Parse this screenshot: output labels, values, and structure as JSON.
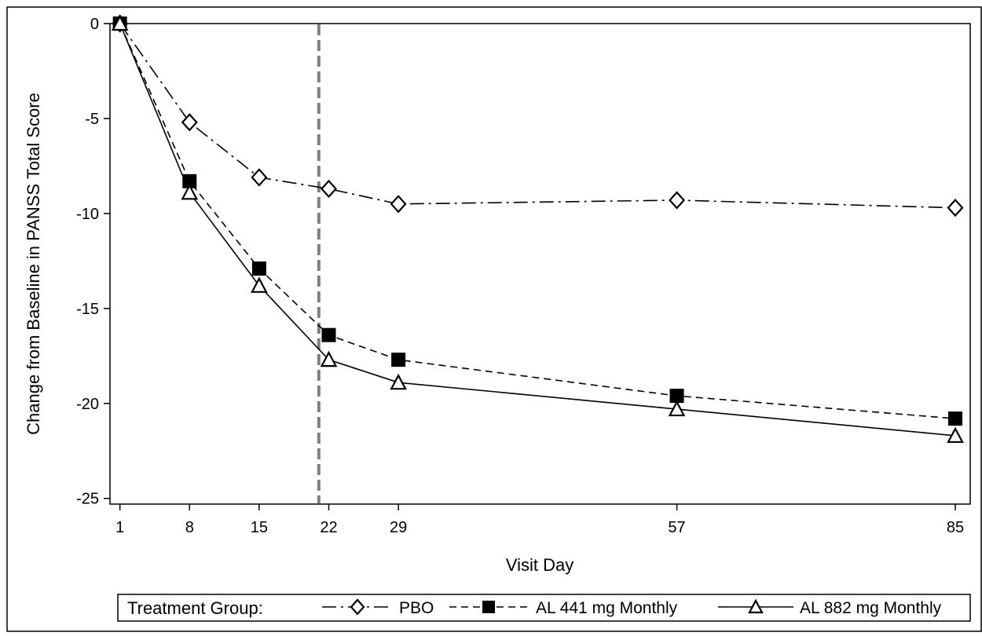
{
  "chart_data": {
    "type": "line",
    "title": "",
    "xlabel": "Visit Day",
    "ylabel": "Change from Baseline in PANSS Total Score",
    "x": [
      1,
      8,
      15,
      22,
      29,
      57,
      85
    ],
    "x_ticks": [
      1,
      8,
      15,
      22,
      29,
      57,
      85
    ],
    "y_ticks": [
      0,
      -5,
      -10,
      -15,
      -20,
      -25
    ],
    "xlim": [
      0,
      86.5
    ],
    "ylim": [
      -25.3,
      0
    ],
    "grid": false,
    "reference_line": {
      "x": 21,
      "style": "dashed",
      "color": "#808080"
    },
    "legend": {
      "placement": "bottom",
      "title": "Treatment Group:"
    },
    "series": [
      {
        "name": "PBO",
        "marker": "diamond-open",
        "line": "dash-dot",
        "values": [
          0,
          -5.2,
          -8.1,
          -8.7,
          -9.5,
          -9.3,
          -9.7
        ]
      },
      {
        "name": "AL 441 mg Monthly",
        "marker": "square-filled",
        "line": "dashed",
        "values": [
          0,
          -8.3,
          -12.9,
          -16.4,
          -17.7,
          -19.6,
          -20.8
        ]
      },
      {
        "name": "AL 882 mg Monthly",
        "marker": "triangle-open",
        "line": "solid",
        "values": [
          0,
          -8.9,
          -13.8,
          -17.7,
          -18.9,
          -20.3,
          -21.7
        ]
      }
    ]
  }
}
